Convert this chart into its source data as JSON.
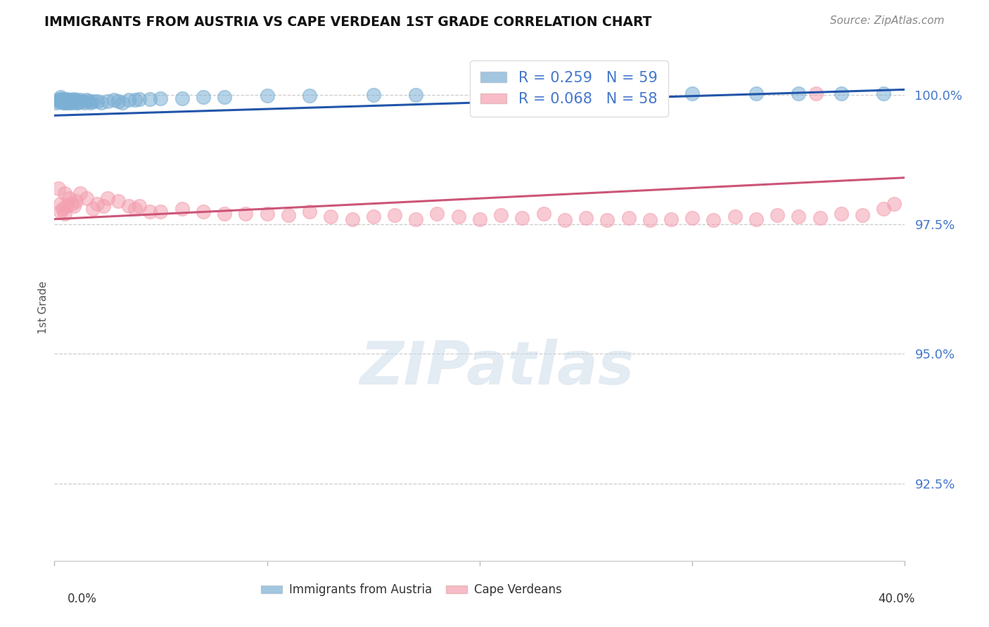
{
  "title": "IMMIGRANTS FROM AUSTRIA VS CAPE VERDEAN 1ST GRADE CORRELATION CHART",
  "source": "Source: ZipAtlas.com",
  "ylabel": "1st Grade",
  "ytick_labels": [
    "100.0%",
    "97.5%",
    "95.0%",
    "92.5%"
  ],
  "ytick_values": [
    1.0,
    0.975,
    0.95,
    0.925
  ],
  "xlim": [
    0.0,
    0.4
  ],
  "ylim": [
    0.91,
    1.008
  ],
  "legend_blue_r": "R = 0.259",
  "legend_blue_n": "N = 59",
  "legend_pink_r": "R = 0.068",
  "legend_pink_n": "N = 58",
  "blue_color": "#7BAFD4",
  "pink_color": "#F4A0B0",
  "blue_line_color": "#2255AA",
  "pink_line_color": "#CC5577",
  "bg_color": "#FFFFFF",
  "blue_trendline_x": [
    0.0,
    0.4
  ],
  "blue_trendline_y": [
    0.996,
    1.001
  ],
  "pink_trendline_x": [
    0.0,
    0.4
  ],
  "pink_trendline_y": [
    0.976,
    0.984
  ],
  "blue_scatter_x": [
    0.001,
    0.002,
    0.002,
    0.003,
    0.003,
    0.003,
    0.004,
    0.004,
    0.004,
    0.005,
    0.005,
    0.005,
    0.006,
    0.006,
    0.006,
    0.007,
    0.007,
    0.007,
    0.008,
    0.008,
    0.009,
    0.009,
    0.01,
    0.01,
    0.011,
    0.011,
    0.012,
    0.013,
    0.014,
    0.015,
    0.016,
    0.017,
    0.018,
    0.02,
    0.022,
    0.025,
    0.028,
    0.03,
    0.032,
    0.035,
    0.038,
    0.04,
    0.045,
    0.05,
    0.06,
    0.07,
    0.08,
    0.1,
    0.12,
    0.15,
    0.17,
    0.2,
    0.23,
    0.26,
    0.3,
    0.33,
    0.35,
    0.37,
    0.39
  ],
  "blue_scatter_y": [
    0.9985,
    0.999,
    0.9988,
    0.9992,
    0.9995,
    0.9988,
    0.999,
    0.9992,
    0.9985,
    0.9988,
    0.9985,
    0.999,
    0.9988,
    0.9992,
    0.9985,
    0.999,
    0.9985,
    0.9988,
    0.999,
    0.9985,
    0.9988,
    0.9992,
    0.9985,
    0.999,
    0.9988,
    0.9985,
    0.999,
    0.9988,
    0.9985,
    0.999,
    0.9988,
    0.9985,
    0.9988,
    0.9988,
    0.9985,
    0.9988,
    0.999,
    0.9988,
    0.9985,
    0.999,
    0.999,
    0.9992,
    0.9992,
    0.9993,
    0.9993,
    0.9995,
    0.9995,
    0.9998,
    0.9998,
    1.0,
    1.0,
    1.0003,
    1.0002,
    1.0003,
    1.0003,
    1.0002,
    1.0003,
    1.0002,
    1.0002
  ],
  "pink_scatter_x": [
    0.002,
    0.003,
    0.003,
    0.004,
    0.005,
    0.005,
    0.006,
    0.007,
    0.008,
    0.009,
    0.01,
    0.012,
    0.015,
    0.018,
    0.02,
    0.023,
    0.025,
    0.03,
    0.035,
    0.038,
    0.04,
    0.045,
    0.05,
    0.06,
    0.07,
    0.08,
    0.09,
    0.1,
    0.11,
    0.12,
    0.13,
    0.14,
    0.15,
    0.16,
    0.17,
    0.18,
    0.19,
    0.2,
    0.21,
    0.22,
    0.23,
    0.24,
    0.25,
    0.26,
    0.27,
    0.28,
    0.29,
    0.3,
    0.31,
    0.32,
    0.33,
    0.34,
    0.35,
    0.36,
    0.37,
    0.38,
    0.39,
    0.395
  ],
  "pink_scatter_y": [
    0.982,
    0.979,
    0.9775,
    0.978,
    0.977,
    0.981,
    0.9785,
    0.98,
    0.979,
    0.9785,
    0.9795,
    0.981,
    0.98,
    0.978,
    0.979,
    0.9785,
    0.98,
    0.9795,
    0.9785,
    0.978,
    0.9785,
    0.9775,
    0.9775,
    0.978,
    0.9775,
    0.977,
    0.977,
    0.977,
    0.9768,
    0.9775,
    0.9765,
    0.976,
    0.9765,
    0.9768,
    0.976,
    0.977,
    0.9765,
    0.976,
    0.9768,
    0.9762,
    0.977,
    0.9758,
    0.9762,
    0.9758,
    0.9762,
    0.9758,
    0.976,
    0.9762,
    0.9758,
    0.9765,
    0.976,
    0.9768,
    0.9765,
    0.9762,
    0.977,
    0.9768,
    0.978,
    0.979
  ],
  "pink_extra_x": [
    0.358
  ],
  "pink_extra_y": [
    1.0002
  ]
}
